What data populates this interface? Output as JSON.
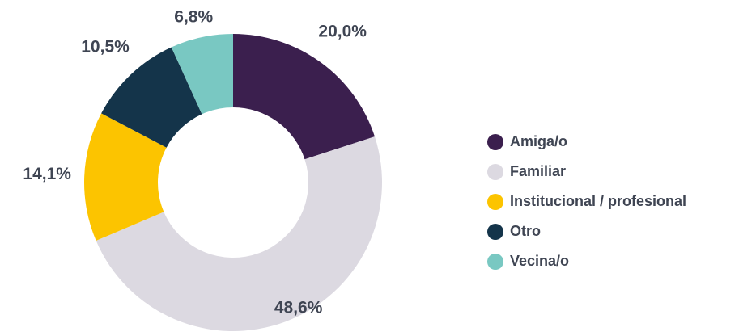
{
  "chart_data": {
    "type": "donut",
    "categories": [
      "Amiga/o",
      "Familiar",
      "Institucional / profesional",
      "Otro",
      "Vecina/o"
    ],
    "values": [
      20.0,
      48.6,
      14.1,
      10.5,
      6.8
    ],
    "value_labels": [
      "20,0%",
      "48,6%",
      "14,1%",
      "10,5%",
      "6,8%"
    ],
    "colors": [
      "#3b1f4e",
      "#dcd9e1",
      "#fcc400",
      "#14344a",
      "#79c8c2"
    ]
  }
}
